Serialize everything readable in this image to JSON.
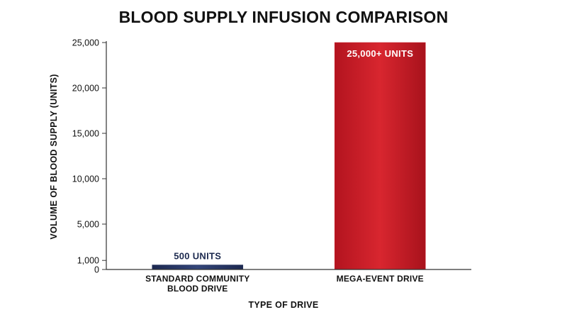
{
  "chart_data": {
    "type": "bar",
    "title": "BLOOD SUPPLY INFUSION COMPARISON",
    "xlabel": "TYPE OF DRIVE",
    "ylabel": "VOLUME OF BLOOD SUPPLY (UNITS)",
    "categories": [
      [
        "STANDARD COMMUNITY",
        "BLOOD DRIVE"
      ],
      [
        "MEGA-EVENT DRIVE"
      ]
    ],
    "values": [
      500,
      25000
    ],
    "data_labels": [
      "500 UNITS",
      "25,000+ UNITS"
    ],
    "bar_colors": [
      "#26355f",
      "#c8202c"
    ],
    "yticks": [
      0,
      1000,
      5000,
      10000,
      15000,
      20000,
      25000
    ],
    "ytick_labels": [
      "0",
      "1,000",
      "5,000",
      "10,000",
      "15,000",
      "20,000",
      "25,000"
    ],
    "ylim": [
      0,
      25000
    ],
    "grid": false,
    "legend": "none"
  }
}
